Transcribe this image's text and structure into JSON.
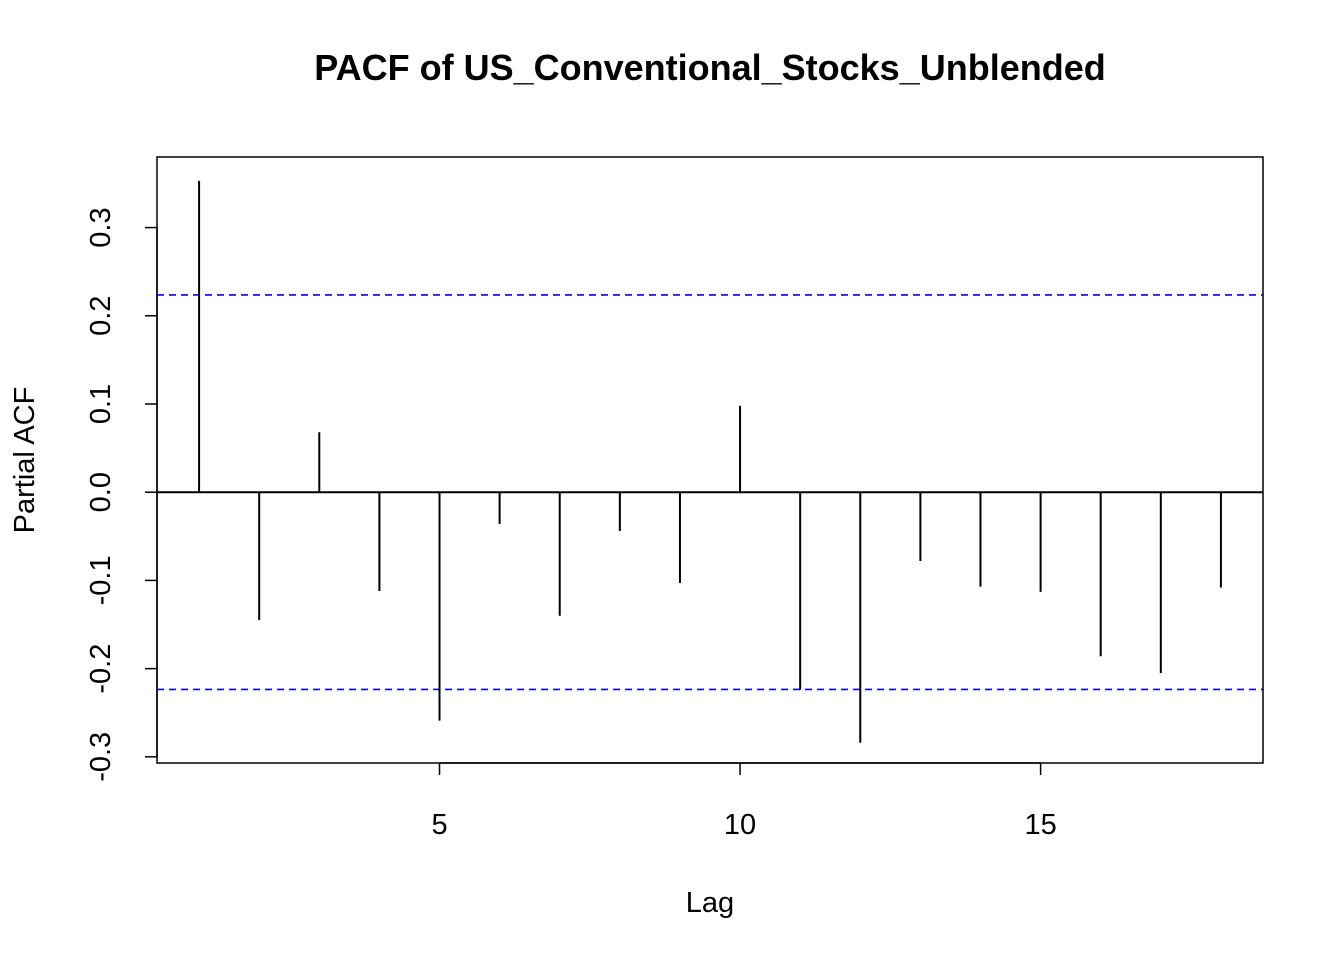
{
  "chart_data": {
    "type": "bar",
    "title": "PACF of US_Conventional_Stocks_Unblended",
    "xlabel": "Lag",
    "ylabel": "Partial ACF",
    "x": [
      1,
      2,
      3,
      4,
      5,
      6,
      7,
      8,
      9,
      10,
      11,
      12,
      13,
      14,
      15,
      16,
      17,
      18
    ],
    "values": [
      0.353,
      -0.145,
      0.068,
      -0.112,
      -0.259,
      -0.036,
      -0.14,
      -0.044,
      -0.103,
      0.098,
      -0.224,
      -0.284,
      -0.078,
      -0.107,
      -0.113,
      -0.186,
      -0.205,
      -0.108
    ],
    "xlim": [
      0.3,
      18.7
    ],
    "ylim": [
      -0.307,
      0.38
    ],
    "xticks": [
      5,
      10,
      15
    ],
    "xtick_labels": [
      "5",
      "10",
      "15"
    ],
    "yticks": [
      -0.3,
      -0.2,
      -0.1,
      0.0,
      0.1,
      0.2,
      0.3
    ],
    "ytick_labels": [
      "-0.3",
      "-0.2",
      "-0.1",
      "0.0",
      "0.1",
      "0.2",
      "0.3"
    ],
    "confidence_bound": 0.2236,
    "confidence_color": "#0000ff",
    "spike_color": "#000000",
    "grid": false
  }
}
